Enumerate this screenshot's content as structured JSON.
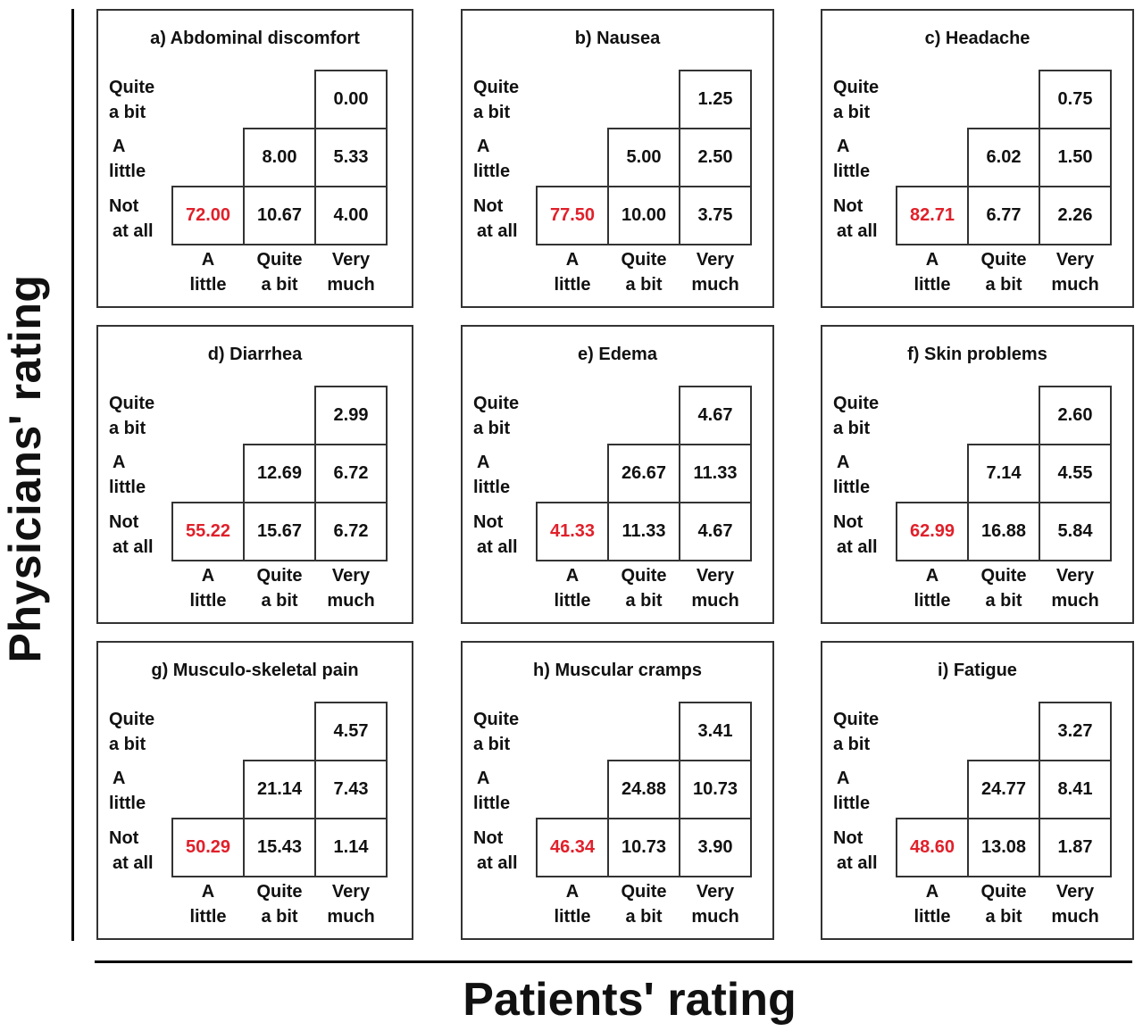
{
  "chart_data": {
    "type": "table",
    "ylabel": "Physicians' rating",
    "xlabel": "Patients' rating",
    "row_labels": [
      [
        "Quite",
        "a bit"
      ],
      [
        "A",
        "little"
      ],
      [
        "Not",
        "at all"
      ]
    ],
    "col_labels": [
      [
        "A",
        "little"
      ],
      [
        "Quite",
        "a bit"
      ],
      [
        "Very",
        "much"
      ]
    ],
    "highlight_color": "#e0202a",
    "panels": [
      {
        "title": "a) Abdominal discomfort",
        "cells": [
          [
            "",
            "",
            "0.00"
          ],
          [
            "",
            "8.00",
            "5.33"
          ],
          [
            "72.00",
            "10.67",
            "4.00"
          ]
        ]
      },
      {
        "title": "b) Nausea",
        "cells": [
          [
            "",
            "",
            "1.25"
          ],
          [
            "",
            "5.00",
            "2.50"
          ],
          [
            "77.50",
            "10.00",
            "3.75"
          ]
        ]
      },
      {
        "title": "c) Headache",
        "cells": [
          [
            "",
            "",
            "0.75"
          ],
          [
            "",
            "6.02",
            "1.50"
          ],
          [
            "82.71",
            "6.77",
            "2.26"
          ]
        ]
      },
      {
        "title": "d) Diarrhea",
        "cells": [
          [
            "",
            "",
            "2.99"
          ],
          [
            "",
            "12.69",
            "6.72"
          ],
          [
            "55.22",
            "15.67",
            "6.72"
          ]
        ]
      },
      {
        "title": "e) Edema",
        "cells": [
          [
            "",
            "",
            "4.67"
          ],
          [
            "",
            "26.67",
            "11.33"
          ],
          [
            "41.33",
            "11.33",
            "4.67"
          ]
        ]
      },
      {
        "title": "f) Skin problems",
        "cells": [
          [
            "",
            "",
            "2.60"
          ],
          [
            "",
            "7.14",
            "4.55"
          ],
          [
            "62.99",
            "16.88",
            "5.84"
          ]
        ]
      },
      {
        "title": "g) Musculo-skeletal pain",
        "cells": [
          [
            "",
            "",
            "4.57"
          ],
          [
            "",
            "21.14",
            "7.43"
          ],
          [
            "50.29",
            "15.43",
            "1.14"
          ]
        ]
      },
      {
        "title": "h) Muscular cramps",
        "cells": [
          [
            "",
            "",
            "3.41"
          ],
          [
            "",
            "24.88",
            "10.73"
          ],
          [
            "46.34",
            "10.73",
            "3.90"
          ]
        ]
      },
      {
        "title": "i) Fatigue",
        "cells": [
          [
            "",
            "",
            "3.27"
          ],
          [
            "",
            "24.77",
            "8.41"
          ],
          [
            "48.60",
            "13.08",
            "1.87"
          ]
        ]
      }
    ]
  }
}
